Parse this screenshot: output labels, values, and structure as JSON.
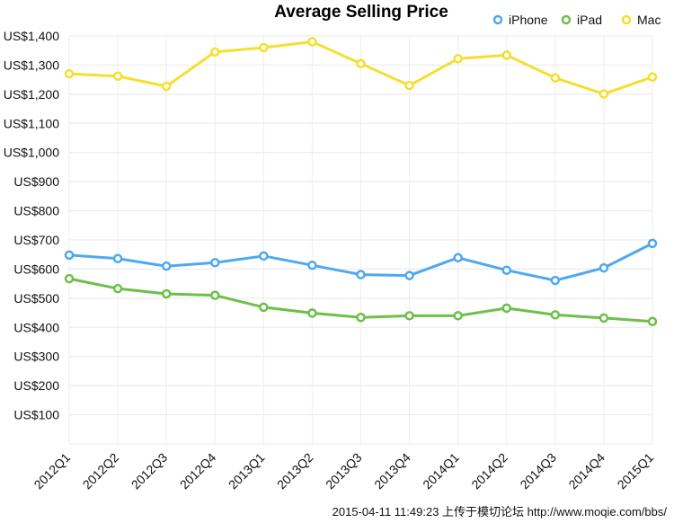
{
  "chart_data": {
    "type": "line",
    "title": "Average Selling Price",
    "xlabel": "",
    "ylabel": "",
    "categories": [
      "2012Q1",
      "2012Q2",
      "2012Q3",
      "2012Q4",
      "2013Q1",
      "2013Q2",
      "2013Q3",
      "2013Q4",
      "2014Q1",
      "2014Q2",
      "2014Q3",
      "2014Q4",
      "2015Q1"
    ],
    "ylim": [
      0,
      1400
    ],
    "yticks": [
      100,
      200,
      300,
      400,
      500,
      600,
      700,
      800,
      900,
      1000,
      1100,
      1200,
      1300,
      1400
    ],
    "ytick_labels": [
      "US$100",
      "US$200",
      "US$300",
      "US$400",
      "US$500",
      "US$600",
      "US$700",
      "US$800",
      "US$900",
      "US$1,000",
      "US$1,100",
      "US$1,200",
      "US$1,300",
      "US$1,400"
    ],
    "grid": true,
    "legend_position": "top-right",
    "series": [
      {
        "name": "iPhone",
        "color": "#4fa8f0",
        "values": [
          648,
          636,
          610,
          622,
          645,
          613,
          581,
          578,
          639,
          596,
          561,
          604,
          688
        ]
      },
      {
        "name": "iPad",
        "color": "#6cc04a",
        "values": [
          567,
          533,
          515,
          510,
          469,
          449,
          434,
          440,
          440,
          466,
          443,
          432,
          420
        ]
      },
      {
        "name": "Mac",
        "color": "#f5df2e",
        "values": [
          1270,
          1262,
          1227,
          1345,
          1360,
          1380,
          1305,
          1230,
          1322,
          1334,
          1256,
          1201,
          1259
        ]
      }
    ]
  },
  "watermark": "2015-04-11 11:49:23 上传于模切论坛 http://www.moqie.com/bbs/"
}
